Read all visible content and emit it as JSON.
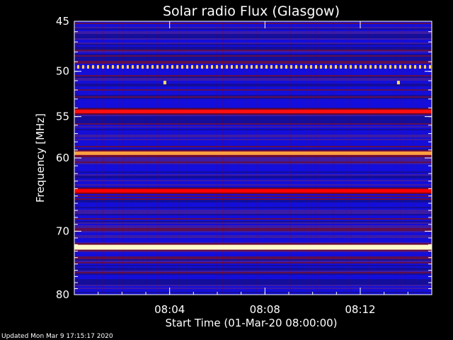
{
  "chart_data": {
    "type": "heatmap",
    "title": "Solar radio Flux (Glasgow)",
    "xlabel": "Start Time (01-Mar-20 08:00:00)",
    "ylabel": "Frequency [MHz]",
    "x_ticks": [
      "08:04",
      "08:08",
      "08:12"
    ],
    "x_tick_minutes": [
      4,
      8,
      12
    ],
    "xlim_minutes": [
      0,
      15
    ],
    "y_ticks": [
      45,
      50,
      55,
      60,
      70,
      80
    ],
    "y_scale": "log",
    "ylim": [
      45,
      80
    ],
    "y_inverted": true,
    "colormap": [
      "#00008b",
      "#0000ff",
      "#8b0000",
      "#ff0000",
      "#ffa500",
      "#ffffff"
    ],
    "background_color": "#2a1fb0",
    "bands": [
      {
        "frequency": 49.5,
        "intensity": "strong",
        "pattern": "dotted",
        "color": "#ffd060"
      },
      {
        "frequency": 54.4,
        "intensity": "strong",
        "color": "#ff1010"
      },
      {
        "frequency": 59.4,
        "intensity": "very strong",
        "color": "#ffa040"
      },
      {
        "frequency": 64.3,
        "intensity": "strong",
        "color": "#ff0000"
      },
      {
        "frequency": 72.4,
        "intensity": "saturated",
        "color": "#fff8c8"
      }
    ],
    "spots": [
      {
        "x_minute": 3.8,
        "frequency": 51.2,
        "color": "#ffe060"
      },
      {
        "x_minute": 13.6,
        "frequency": 51.2,
        "color": "#ffe060"
      }
    ]
  },
  "footer": "Updated Mon Mar  9 17:15:17 2020"
}
